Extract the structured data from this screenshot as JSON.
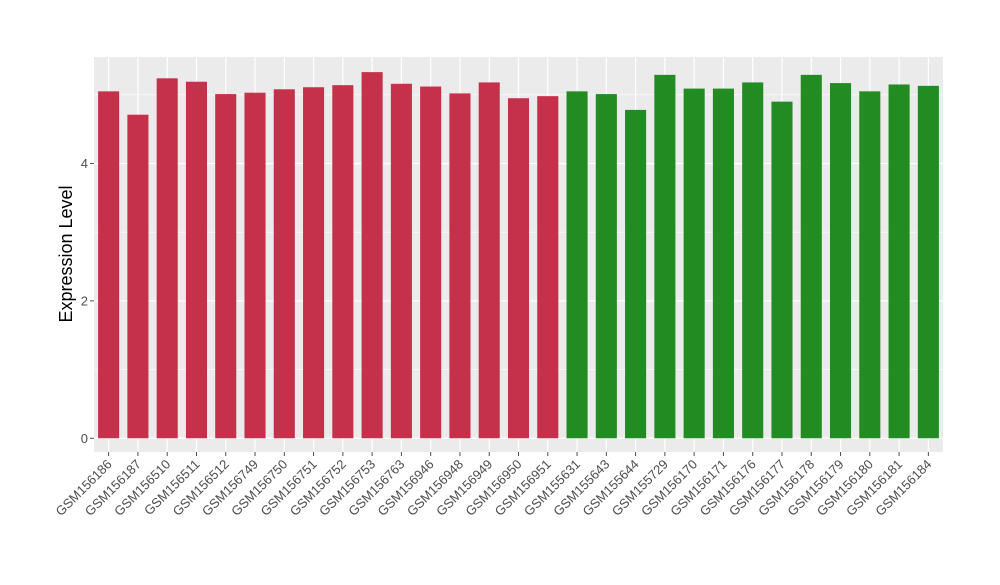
{
  "chart_data": {
    "type": "bar",
    "ylabel": "Expression Level",
    "xlabel": "",
    "ylim": [
      -0.2,
      5.55
    ],
    "yticks": [
      0,
      2,
      4
    ],
    "grid": true,
    "categories": [
      "GSM156186",
      "GSM156187",
      "GSM156510",
      "GSM156511",
      "GSM156512",
      "GSM156749",
      "GSM156750",
      "GSM156751",
      "GSM156752",
      "GSM156753",
      "GSM156763",
      "GSM156946",
      "GSM156948",
      "GSM156949",
      "GSM156950",
      "GSM156951",
      "GSM155631",
      "GSM155643",
      "GSM155644",
      "GSM155729",
      "GSM156170",
      "GSM156171",
      "GSM156176",
      "GSM156177",
      "GSM156178",
      "GSM156179",
      "GSM156180",
      "GSM156181",
      "GSM156184"
    ],
    "values": [
      5.05,
      4.71,
      5.24,
      5.19,
      5.01,
      5.03,
      5.08,
      5.11,
      5.14,
      5.33,
      5.16,
      5.12,
      5.02,
      5.18,
      4.95,
      4.98,
      5.05,
      5.01,
      4.78,
      5.29,
      5.09,
      5.09,
      5.18,
      4.9,
      5.29,
      5.17,
      5.05,
      5.15,
      5.13
    ],
    "groups": [
      "red",
      "red",
      "red",
      "red",
      "red",
      "red",
      "red",
      "red",
      "red",
      "red",
      "red",
      "red",
      "red",
      "red",
      "red",
      "red",
      "green",
      "green",
      "green",
      "green",
      "green",
      "green",
      "green",
      "green",
      "green",
      "green",
      "green",
      "green",
      "green"
    ],
    "colors": {
      "red": "#C5314A",
      "green": "#228B22",
      "panel": "#EBEBEB",
      "grid": "#FFFFFF",
      "tick": "#4D4D4D"
    }
  }
}
